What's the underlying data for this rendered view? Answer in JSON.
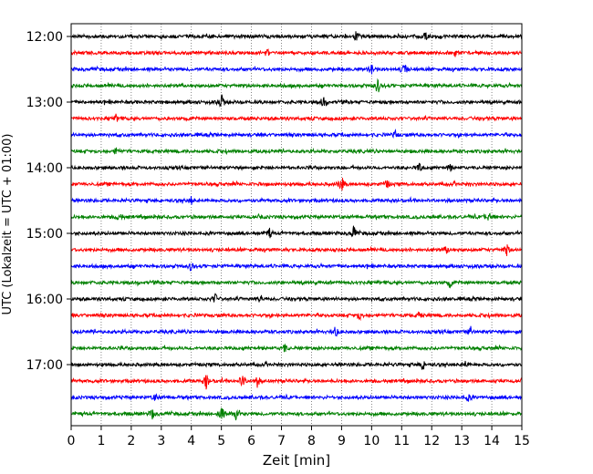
{
  "chart_data": {
    "type": "line",
    "title": "",
    "xlabel": "Zeit  [min]",
    "ylabel": "UTC (Lokalzeit = UTC + 01:00)",
    "xlim": [
      0,
      15
    ],
    "x_ticks": [
      "0",
      "1",
      "2",
      "3",
      "4",
      "5",
      "6",
      "7",
      "8",
      "9",
      "10",
      "11",
      "12",
      "13",
      "14",
      "15"
    ],
    "y_ticks": [
      "12:00",
      "13:00",
      "14:00",
      "15:00",
      "16:00",
      "17:00"
    ],
    "grid": "vertical dotted",
    "trace_colors": [
      "#000000",
      "#ff0000",
      "#0000ff",
      "#008000"
    ],
    "traces": [
      {
        "start": "12:00",
        "color": "#000000",
        "events": [
          [
            9.5,
            7
          ],
          [
            11.8,
            4
          ]
        ]
      },
      {
        "start": "12:15",
        "color": "#ff0000",
        "events": [
          [
            6.5,
            4
          ],
          [
            12.8,
            4
          ]
        ]
      },
      {
        "start": "12:30",
        "color": "#0000ff",
        "events": [
          [
            10.0,
            6
          ],
          [
            11.1,
            9
          ]
        ]
      },
      {
        "start": "12:45",
        "color": "#008000",
        "events": [
          [
            10.2,
            10
          ]
        ]
      },
      {
        "start": "13:00",
        "color": "#000000",
        "events": [
          [
            5.0,
            10
          ],
          [
            8.4,
            7
          ]
        ]
      },
      {
        "start": "13:15",
        "color": "#ff0000",
        "events": [
          [
            1.5,
            4
          ]
        ]
      },
      {
        "start": "13:30",
        "color": "#0000ff",
        "events": [
          [
            10.8,
            4
          ]
        ]
      },
      {
        "start": "13:45",
        "color": "#008000",
        "events": [
          [
            1.5,
            4
          ]
        ]
      },
      {
        "start": "14:00",
        "color": "#000000",
        "events": [
          [
            11.6,
            6
          ],
          [
            12.6,
            4
          ]
        ]
      },
      {
        "start": "14:15",
        "color": "#ff0000",
        "events": [
          [
            9.0,
            10
          ],
          [
            10.5,
            5
          ]
        ]
      },
      {
        "start": "14:30",
        "color": "#0000ff",
        "events": [
          [
            4.0,
            4
          ]
        ]
      },
      {
        "start": "14:45",
        "color": "#008000",
        "events": [
          [
            1.6,
            5
          ],
          [
            13.9,
            9
          ]
        ]
      },
      {
        "start": "15:00",
        "color": "#000000",
        "events": [
          [
            9.4,
            8
          ],
          [
            6.6,
            5
          ]
        ]
      },
      {
        "start": "15:15",
        "color": "#ff0000",
        "events": [
          [
            14.5,
            7
          ],
          [
            12.5,
            4
          ]
        ]
      },
      {
        "start": "15:30",
        "color": "#0000ff",
        "events": [
          [
            4.0,
            6
          ]
        ]
      },
      {
        "start": "15:45",
        "color": "#008000",
        "events": [
          [
            12.6,
            5
          ]
        ]
      },
      {
        "start": "16:00",
        "color": "#000000",
        "events": [
          [
            4.8,
            6
          ],
          [
            6.3,
            5
          ]
        ]
      },
      {
        "start": "16:15",
        "color": "#ff0000",
        "events": [
          [
            9.6,
            5
          ],
          [
            11.6,
            4
          ]
        ]
      },
      {
        "start": "16:30",
        "color": "#0000ff",
        "events": [
          [
            8.8,
            6
          ],
          [
            13.3,
            5
          ]
        ]
      },
      {
        "start": "16:45",
        "color": "#008000",
        "events": [
          [
            7.1,
            5
          ]
        ]
      },
      {
        "start": "17:00",
        "color": "#000000",
        "events": [
          [
            11.7,
            7
          ],
          [
            13.1,
            4
          ]
        ]
      },
      {
        "start": "17:15",
        "color": "#ff0000",
        "events": [
          [
            4.5,
            9
          ],
          [
            5.7,
            10
          ],
          [
            6.2,
            7
          ]
        ]
      },
      {
        "start": "17:30",
        "color": "#0000ff",
        "events": [
          [
            2.8,
            4
          ],
          [
            13.2,
            5
          ]
        ]
      },
      {
        "start": "17:45",
        "color": "#008000",
        "events": [
          [
            2.7,
            6
          ],
          [
            5.0,
            11
          ],
          [
            5.5,
            10
          ]
        ]
      }
    ]
  }
}
